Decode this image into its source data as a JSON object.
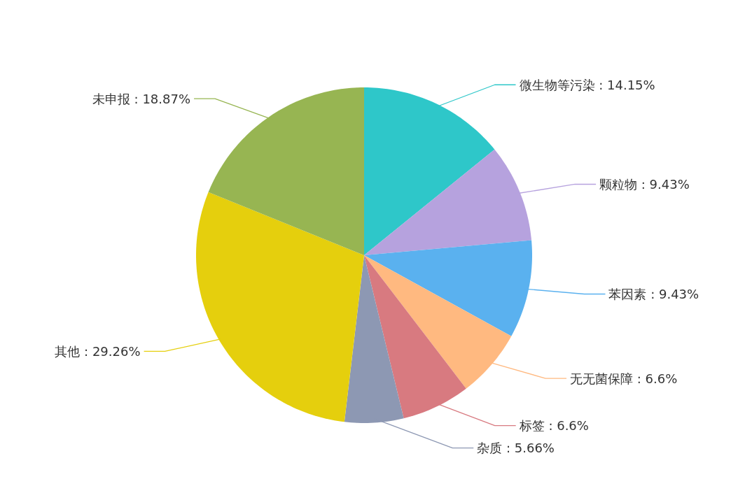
{
  "chart_data": {
    "type": "pie",
    "categories": [
      "微生物等污染",
      "颗粒物",
      "苯因素",
      "无无菌保障",
      "标签",
      "杂质",
      "其他",
      "未申报"
    ],
    "values": [
      14.15,
      9.43,
      9.43,
      6.6,
      6.6,
      5.66,
      29.26,
      18.87
    ],
    "value_labels": [
      ": 14.15%",
      ": 9.43%",
      ": 9.43%",
      ": 6.6%",
      ": 6.6%",
      ": 5.66%",
      ": 29.26%",
      ": 18.87%"
    ],
    "colors": [
      "#2ec7c9",
      "#b6a2de",
      "#5ab1ef",
      "#ffb980",
      "#d87a80",
      "#8d98b3",
      "#e5cf0d",
      "#97b552"
    ]
  }
}
